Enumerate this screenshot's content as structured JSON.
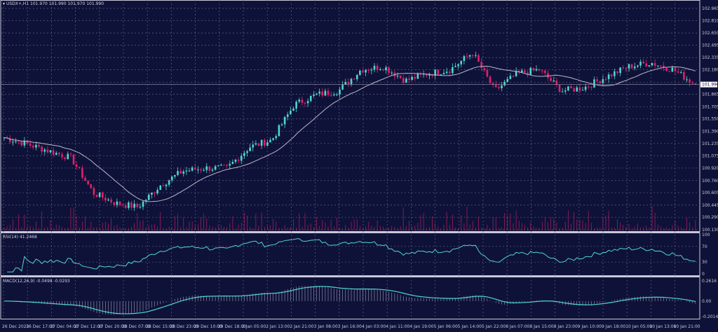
{
  "header": {
    "symbol_label": "USDX+,H1  101.970 101.990 101.970 101.990"
  },
  "colors": {
    "background": "#0f1238",
    "bull": "#4fd6d0",
    "bear": "#e0206a",
    "ma": "#b8b8c8",
    "indicator": "#4fd6d0",
    "grid": "#5a5f8a",
    "volume": "#e0206a"
  },
  "chart_data": [
    {
      "type": "candlestick",
      "title": "USDX+,H1",
      "current_price": "101.990",
      "y_ticks": [
        "102.965",
        "102.810",
        "102.650",
        "102.495",
        "102.335",
        "102.180",
        "102.020",
        "101.865",
        "101.705",
        "101.550",
        "101.390",
        "101.235",
        "101.075",
        "100.920",
        "100.760",
        "100.605",
        "100.445",
        "100.290",
        "100.130"
      ],
      "ylim": [
        100.13,
        102.965
      ],
      "x_ticks": [
        "26 Dec 2023",
        "26 Dec 17:00",
        "27 Dec 04:00",
        "27 Dec 12:00",
        "27 Dec 20:00",
        "28 Dec 07:00",
        "28 Dec 15:00",
        "28 Dec 23:00",
        "29 Dec 10:00",
        "29 Dec 18:00",
        "2 Jan 05:00",
        "2 Jan 13:00",
        "2 Jan 21:00",
        "3 Jan 08:00",
        "3 Jan 16:00",
        "4 Jan 03:00",
        "4 Jan 11:00",
        "4 Jan 19:00",
        "5 Jan 06:00",
        "5 Jan 14:00",
        "5 Jan 22:00",
        "8 Jan 07:00",
        "8 Jan 15:00",
        "8 Jan 23:00",
        "9 Jan 10:00",
        "9 Jan 18:00",
        "10 Jan 05:00",
        "10 Jan 13:00",
        "10 Jan 21:00"
      ],
      "approx_close_path": [
        101.31,
        101.23,
        101.14,
        101.05,
        100.6,
        100.47,
        100.42,
        100.7,
        100.88,
        100.92,
        100.92,
        101.19,
        101.28,
        101.73,
        101.86,
        101.91,
        102.18,
        102.22,
        102.04,
        102.13,
        102.18,
        102.4,
        101.91,
        102.13,
        102.18,
        101.91,
        101.95,
        102.09,
        102.22,
        102.27,
        102.18,
        101.99
      ],
      "overlays": [
        "moving average"
      ],
      "volume": true,
      "grid": true
    },
    {
      "type": "line",
      "title": "RSI(14) 41.2468",
      "y_ticks": [
        "100",
        "70",
        "30",
        "0"
      ],
      "ylim": [
        0,
        100
      ]
    },
    {
      "type": "line+histogram",
      "title": "MACD(12,26,9) -0.0498 -0.0293",
      "y_ticks": [
        "0.2616",
        "0.00",
        "-0.2014"
      ],
      "ylim": [
        -0.2014,
        0.2616
      ]
    }
  ]
}
